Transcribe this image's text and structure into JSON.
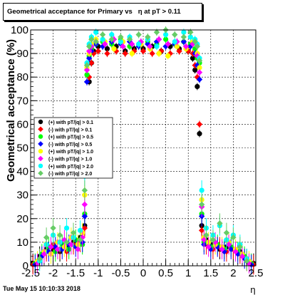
{
  "title": "Geometrical acceptance for Primary vs   η at pT > 0.11",
  "timestamp": "Tue May 15 10:10:33 2018",
  "chart_data": {
    "type": "scatter",
    "title": "Geometrical acceptance for Primary vs   η at pT > 0.11",
    "xlabel": "η",
    "ylabel": "Geometrical acceptance (%)",
    "xlim": [
      -2.5,
      2.5
    ],
    "ylim": [
      0,
      100
    ],
    "xticks": [
      "-2.5",
      "-2",
      "-1.5",
      "-1",
      "-0.5",
      "0",
      "0.5",
      "1",
      "1.5",
      "2",
      "2.5"
    ],
    "yticks": [
      "0",
      "10",
      "20",
      "30",
      "40",
      "50",
      "60",
      "70",
      "80",
      "90",
      "100"
    ],
    "grid": true,
    "legend_position": "left-middle",
    "series": [
      {
        "name": "(+) with pT/|q| > 0.1",
        "color": "#000000",
        "marker": "circle",
        "points": [
          [
            -2.45,
            1
          ],
          [
            -2.3,
            4
          ],
          [
            -2.15,
            7
          ],
          [
            -2.0,
            7
          ],
          [
            -1.85,
            6
          ],
          [
            -1.7,
            8
          ],
          [
            -1.55,
            10
          ],
          [
            -1.4,
            12
          ],
          [
            -1.3,
            17
          ],
          [
            -1.25,
            50
          ],
          [
            -1.2,
            78
          ],
          [
            -1.15,
            86
          ],
          [
            -1.1,
            91
          ],
          [
            -1.0,
            93
          ],
          [
            -0.8,
            92
          ],
          [
            -0.6,
            93
          ],
          [
            -0.4,
            91
          ],
          [
            -0.2,
            92
          ],
          [
            0.0,
            92
          ],
          [
            0.2,
            93
          ],
          [
            0.4,
            91
          ],
          [
            0.6,
            93
          ],
          [
            0.8,
            92
          ],
          [
            1.0,
            91
          ],
          [
            1.1,
            88
          ],
          [
            1.15,
            83
          ],
          [
            1.2,
            76
          ],
          [
            1.25,
            56
          ],
          [
            1.3,
            17
          ],
          [
            1.4,
            11
          ],
          [
            1.55,
            9
          ],
          [
            1.7,
            7
          ],
          [
            1.85,
            8
          ],
          [
            2.0,
            7
          ],
          [
            2.15,
            6
          ],
          [
            2.3,
            3
          ],
          [
            2.45,
            1
          ]
        ]
      },
      {
        "name": "(-) with pT/|q| > 0.1",
        "color": "#ff0000",
        "marker": "diamond",
        "points": [
          [
            -2.45,
            0.5
          ],
          [
            -2.3,
            3
          ],
          [
            -2.15,
            6
          ],
          [
            -2.0,
            9
          ],
          [
            -1.85,
            7
          ],
          [
            -1.7,
            6
          ],
          [
            -1.55,
            9
          ],
          [
            -1.4,
            10
          ],
          [
            -1.3,
            16
          ],
          [
            -1.25,
            58
          ],
          [
            -1.2,
            80
          ],
          [
            -1.15,
            86
          ],
          [
            -1.1,
            90
          ],
          [
            -1.0,
            91
          ],
          [
            -0.8,
            90
          ],
          [
            -0.6,
            91
          ],
          [
            -0.4,
            90
          ],
          [
            -0.2,
            91
          ],
          [
            0.0,
            91
          ],
          [
            0.2,
            90
          ],
          [
            0.4,
            91
          ],
          [
            0.6,
            90
          ],
          [
            0.8,
            91
          ],
          [
            1.0,
            91
          ],
          [
            1.1,
            90
          ],
          [
            1.15,
            85
          ],
          [
            1.2,
            80
          ],
          [
            1.25,
            60
          ],
          [
            1.3,
            15
          ],
          [
            1.4,
            9
          ],
          [
            1.55,
            7
          ],
          [
            1.7,
            8
          ],
          [
            1.85,
            6
          ],
          [
            2.0,
            7
          ],
          [
            2.15,
            5
          ],
          [
            2.3,
            2
          ],
          [
            2.45,
            0.5
          ]
        ]
      },
      {
        "name": "(+) with pT/|q| > 0.5",
        "color": "#00ff00",
        "marker": "circle",
        "points": [
          [
            -2.4,
            1
          ],
          [
            -2.25,
            5
          ],
          [
            -2.1,
            8
          ],
          [
            -1.95,
            6
          ],
          [
            -1.8,
            9
          ],
          [
            -1.65,
            7
          ],
          [
            -1.5,
            11
          ],
          [
            -1.35,
            9
          ],
          [
            -1.3,
            22
          ],
          [
            -1.25,
            81
          ],
          [
            -1.2,
            89
          ],
          [
            -1.15,
            92
          ],
          [
            -1.05,
            94
          ],
          [
            -0.9,
            95
          ],
          [
            -0.7,
            94
          ],
          [
            -0.5,
            96
          ],
          [
            -0.3,
            93
          ],
          [
            -0.1,
            94
          ],
          [
            0.1,
            95
          ],
          [
            0.3,
            94
          ],
          [
            0.5,
            96
          ],
          [
            0.7,
            94
          ],
          [
            0.9,
            95
          ],
          [
            1.05,
            94
          ],
          [
            1.15,
            92
          ],
          [
            1.2,
            88
          ],
          [
            1.25,
            86
          ],
          [
            1.3,
            22
          ],
          [
            1.35,
            10
          ],
          [
            1.5,
            8
          ],
          [
            1.65,
            9
          ],
          [
            1.8,
            7
          ],
          [
            1.95,
            8
          ],
          [
            2.1,
            6
          ],
          [
            2.25,
            4
          ],
          [
            2.4,
            1
          ]
        ]
      },
      {
        "name": "(-) with pT/|q| > 0.5",
        "color": "#0000ff",
        "marker": "diamond",
        "points": [
          [
            -2.4,
            0.5
          ],
          [
            -2.25,
            4
          ],
          [
            -2.1,
            6
          ],
          [
            -1.95,
            8
          ],
          [
            -1.8,
            7
          ],
          [
            -1.65,
            9
          ],
          [
            -1.5,
            8
          ],
          [
            -1.35,
            10
          ],
          [
            -1.3,
            21
          ],
          [
            -1.25,
            78
          ],
          [
            -1.2,
            88
          ],
          [
            -1.15,
            91
          ],
          [
            -1.05,
            94
          ],
          [
            -0.9,
            93
          ],
          [
            -0.7,
            95
          ],
          [
            -0.5,
            94
          ],
          [
            -0.3,
            95
          ],
          [
            -0.1,
            93
          ],
          [
            0.1,
            94
          ],
          [
            0.3,
            95
          ],
          [
            0.5,
            93
          ],
          [
            0.7,
            94
          ],
          [
            0.9,
            95
          ],
          [
            1.05,
            93
          ],
          [
            1.15,
            90
          ],
          [
            1.2,
            85
          ],
          [
            1.25,
            79
          ],
          [
            1.3,
            21
          ],
          [
            1.35,
            9
          ],
          [
            1.5,
            7
          ],
          [
            1.65,
            8
          ],
          [
            1.8,
            6
          ],
          [
            1.95,
            7
          ],
          [
            2.1,
            5
          ],
          [
            2.25,
            3
          ],
          [
            2.4,
            0.5
          ]
        ]
      },
      {
        "name": "(+) with pT/|q| > 1.0",
        "color": "#ffff00",
        "marker": "circle",
        "points": [
          [
            -2.35,
            2
          ],
          [
            -2.2,
            6
          ],
          [
            -2.05,
            5
          ],
          [
            -1.9,
            10
          ],
          [
            -1.75,
            8
          ],
          [
            -1.6,
            12
          ],
          [
            -1.45,
            9
          ],
          [
            -1.35,
            14
          ],
          [
            -1.3,
            30
          ],
          [
            -1.25,
            84
          ],
          [
            -1.2,
            90
          ],
          [
            -1.15,
            94
          ],
          [
            -1.05,
            96
          ],
          [
            -0.85,
            95
          ],
          [
            -0.65,
            92
          ],
          [
            -0.45,
            95
          ],
          [
            -0.25,
            90
          ],
          [
            -0.05,
            94
          ],
          [
            0.15,
            92
          ],
          [
            0.35,
            90
          ],
          [
            0.55,
            89
          ],
          [
            0.75,
            93
          ],
          [
            0.95,
            92
          ],
          [
            1.1,
            95
          ],
          [
            1.2,
            90
          ],
          [
            1.25,
            84
          ],
          [
            1.3,
            28
          ],
          [
            1.35,
            12
          ],
          [
            1.45,
            10
          ],
          [
            1.6,
            9
          ],
          [
            1.75,
            8
          ],
          [
            1.9,
            10
          ],
          [
            2.05,
            7
          ],
          [
            2.2,
            5
          ],
          [
            2.35,
            2
          ]
        ]
      },
      {
        "name": "(-) with pT/|q| > 1.0",
        "color": "#ff00ff",
        "marker": "diamond",
        "points": [
          [
            -2.35,
            1
          ],
          [
            -2.2,
            5
          ],
          [
            -2.05,
            8
          ],
          [
            -1.9,
            7
          ],
          [
            -1.75,
            11
          ],
          [
            -1.6,
            9
          ],
          [
            -1.45,
            7
          ],
          [
            -1.35,
            12
          ],
          [
            -1.3,
            26
          ],
          [
            -1.25,
            83
          ],
          [
            -1.2,
            91
          ],
          [
            -1.15,
            93
          ],
          [
            -1.05,
            95
          ],
          [
            -0.85,
            94
          ],
          [
            -0.65,
            96
          ],
          [
            -0.45,
            93
          ],
          [
            -0.25,
            94
          ],
          [
            -0.05,
            95
          ],
          [
            0.15,
            93
          ],
          [
            0.35,
            96
          ],
          [
            0.55,
            94
          ],
          [
            0.75,
            95
          ],
          [
            0.95,
            93
          ],
          [
            1.1,
            94
          ],
          [
            1.2,
            89
          ],
          [
            1.25,
            82
          ],
          [
            1.3,
            25
          ],
          [
            1.35,
            11
          ],
          [
            1.45,
            8
          ],
          [
            1.6,
            10
          ],
          [
            1.75,
            7
          ],
          [
            1.9,
            9
          ],
          [
            2.05,
            6
          ],
          [
            2.2,
            4
          ],
          [
            2.35,
            1
          ]
        ]
      },
      {
        "name": "(+) with pT/|q| > 2.0",
        "color": "#00ffff",
        "marker": "circle",
        "points": [
          [
            -2.3,
            2
          ],
          [
            -2.15,
            9
          ],
          [
            -2.0,
            13
          ],
          [
            -1.85,
            10
          ],
          [
            -1.7,
            16
          ],
          [
            -1.55,
            12
          ],
          [
            -1.4,
            15
          ],
          [
            -1.3,
            38
          ],
          [
            -1.25,
            86
          ],
          [
            -1.2,
            94
          ],
          [
            -1.15,
            97
          ],
          [
            -1.05,
            99
          ],
          [
            -0.9,
            96
          ],
          [
            -0.7,
            98
          ],
          [
            -0.5,
            95
          ],
          [
            -0.3,
            97
          ],
          [
            -0.1,
            94
          ],
          [
            0.1,
            96
          ],
          [
            0.3,
            93
          ],
          [
            0.5,
            98
          ],
          [
            0.7,
            95
          ],
          [
            0.9,
            99
          ],
          [
            1.05,
            97
          ],
          [
            1.15,
            96
          ],
          [
            1.2,
            94
          ],
          [
            1.25,
            88
          ],
          [
            1.3,
            32
          ],
          [
            1.4,
            16
          ],
          [
            1.55,
            13
          ],
          [
            1.7,
            17
          ],
          [
            1.85,
            11
          ],
          [
            2.0,
            13
          ],
          [
            2.15,
            9
          ],
          [
            2.3,
            3
          ]
        ]
      },
      {
        "name": "(-) with pT/|q| > 2.0",
        "color": "#66cc66",
        "marker": "diamond",
        "points": [
          [
            -2.3,
            3
          ],
          [
            -2.15,
            12
          ],
          [
            -2.0,
            16
          ],
          [
            -1.85,
            13
          ],
          [
            -1.7,
            10
          ],
          [
            -1.55,
            14
          ],
          [
            -1.4,
            11
          ],
          [
            -1.3,
            32
          ],
          [
            -1.25,
            85
          ],
          [
            -1.2,
            93
          ],
          [
            -1.15,
            96
          ],
          [
            -1.05,
            95
          ],
          [
            -0.9,
            98
          ],
          [
            -0.7,
            96
          ],
          [
            -0.5,
            97
          ],
          [
            -0.3,
            96
          ],
          [
            -0.1,
            98
          ],
          [
            0.1,
            97
          ],
          [
            0.3,
            99
          ],
          [
            0.5,
            100
          ],
          [
            0.7,
            98
          ],
          [
            0.9,
            97
          ],
          [
            1.05,
            99
          ],
          [
            1.15,
            95
          ],
          [
            1.2,
            93
          ],
          [
            1.25,
            87
          ],
          [
            1.3,
            26
          ],
          [
            1.4,
            13
          ],
          [
            1.55,
            11
          ],
          [
            1.7,
            18
          ],
          [
            1.85,
            14
          ],
          [
            2.0,
            12
          ],
          [
            2.15,
            8
          ],
          [
            2.3,
            2
          ]
        ]
      }
    ]
  }
}
